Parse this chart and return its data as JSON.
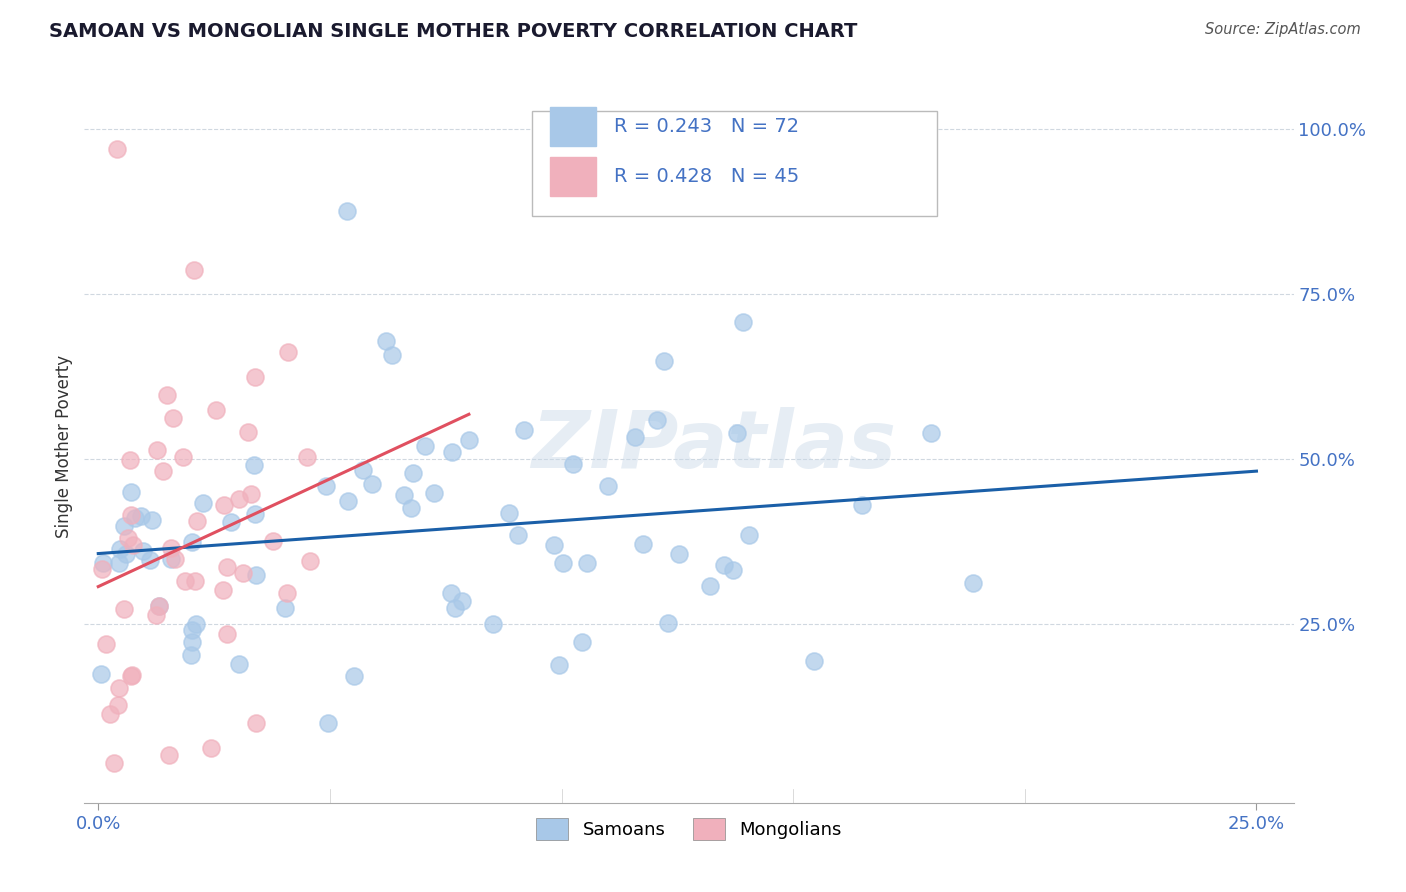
{
  "title": "SAMOAN VS MONGOLIAN SINGLE MOTHER POVERTY CORRELATION CHART",
  "source": "Source: ZipAtlas.com",
  "ylabel": "Single Mother Poverty",
  "watermark": "ZIPatlas",
  "samoans_R": "0.243",
  "samoans_N": "72",
  "mongolians_R": "0.428",
  "mongolians_N": "45",
  "samoan_color": "#a8c8e8",
  "mongolian_color": "#f0b0bc",
  "samoan_line_color": "#1a5fa8",
  "mongolian_line_color": "#e05060",
  "tick_color": "#4472c4",
  "background_color": "#ffffff",
  "grid_color": "#d0d8e0",
  "title_color": "#1a1a2e",
  "source_color": "#555555",
  "ylabel_color": "#333333"
}
